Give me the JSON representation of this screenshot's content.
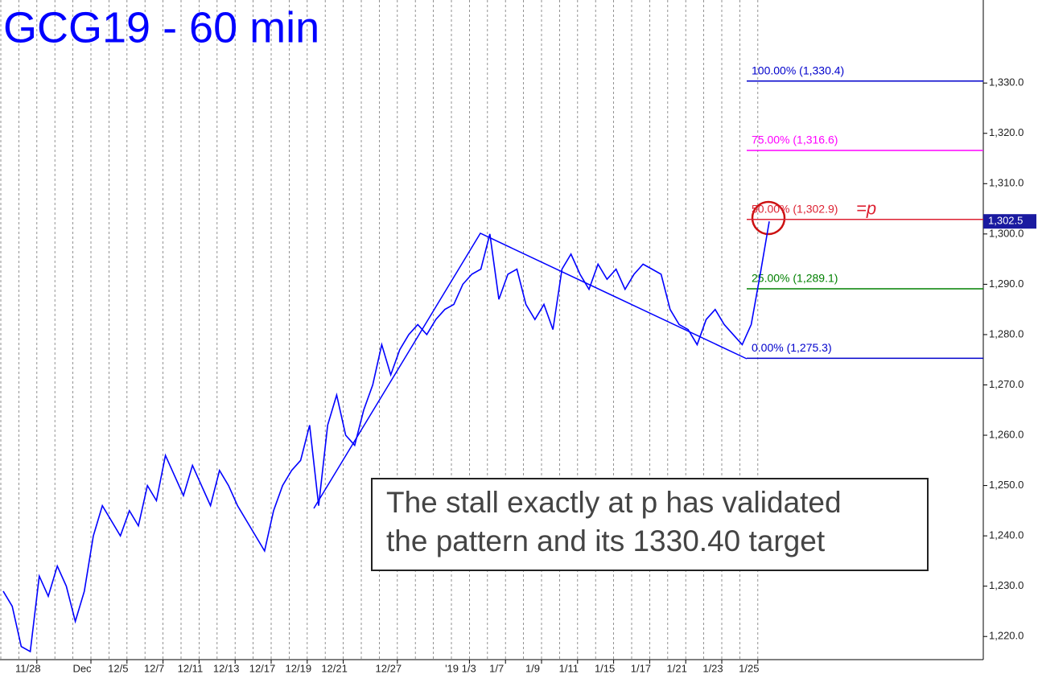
{
  "chart_data": {
    "type": "line",
    "title": "GCG19 - 60 min",
    "categories": [
      null,
      null,
      null,
      null,
      "11/28",
      null,
      null,
      null,
      null,
      null,
      "Dec",
      null,
      null,
      null,
      "12/5",
      null,
      null,
      null,
      "12/7",
      null,
      null,
      null,
      "12/11",
      null,
      null,
      null,
      "12/13",
      null,
      null,
      null,
      "12/17",
      null,
      null,
      null,
      "12/19",
      null,
      null,
      null,
      "12/21",
      null,
      null,
      null,
      null,
      null,
      "12/27",
      null,
      null,
      null,
      null,
      null,
      null,
      null,
      "'19 1/3",
      null,
      null,
      null,
      "1/7",
      null,
      null,
      null,
      "1/9",
      null,
      null,
      null,
      "1/11",
      null,
      null,
      null,
      "1/15",
      null,
      null,
      null,
      "1/17",
      null,
      null,
      null,
      "1/21",
      null,
      null,
      null,
      "1/23",
      null,
      null,
      null,
      "1/25",
      null
    ],
    "series": [
      {
        "name": "GCG19",
        "color": "#0000ff",
        "values": [
          1229,
          1226,
          1218,
          1217,
          1232,
          1228,
          1234,
          1230,
          1223,
          1229,
          1240,
          1246,
          1243,
          1240,
          1245,
          1242,
          1250,
          1247,
          1256,
          1252,
          1248,
          1254,
          1250,
          1246,
          1253,
          1250,
          1246,
          1243,
          1240,
          1237,
          1245,
          1250,
          1253,
          1255,
          1262,
          1246,
          1262,
          1268,
          1260,
          1258,
          1265,
          1270,
          1278,
          1272,
          1277,
          1280,
          1282,
          1280,
          1283,
          1285,
          1286,
          1290,
          1292,
          1293,
          1300,
          1287,
          1292,
          1293,
          1286,
          1283,
          1286,
          1281,
          1293,
          1296,
          1292,
          1289,
          1294,
          1291,
          1293,
          1289,
          1292,
          1294,
          1293,
          1292,
          1285,
          1282,
          1281,
          1278,
          1283,
          1285,
          1282,
          1280,
          1278,
          1282,
          1292,
          1302.5
        ]
      }
    ],
    "ylim": [
      1215.4,
      1346.5
    ],
    "yticks": [
      {
        "value": 1220,
        "label": "1,220.0"
      },
      {
        "value": 1230,
        "label": "1,230.0"
      },
      {
        "value": 1240,
        "label": "1,240.0"
      },
      {
        "value": 1250,
        "label": "1,250.0"
      },
      {
        "value": 1260,
        "label": "1,260.0"
      },
      {
        "value": 1270,
        "label": "1,270.0"
      },
      {
        "value": 1280,
        "label": "1,280.0"
      },
      {
        "value": 1290,
        "label": "1,290.0"
      },
      {
        "value": 1300,
        "label": "1,300.0"
      },
      {
        "value": 1310,
        "label": "1,310.0"
      },
      {
        "value": 1320,
        "label": "1,320.0"
      },
      {
        "value": 1330,
        "label": "1,330.0"
      }
    ],
    "last_price": {
      "value": 1302.5,
      "label": "1,302.5"
    },
    "levels": [
      {
        "value": 1330.4,
        "label": "100.00% (1,330.4)",
        "color": "#0000cc"
      },
      {
        "value": 1316.6,
        "label": "75.00% (1,316.6)",
        "color": "#ff00ff"
      },
      {
        "value": 1302.9,
        "label": "50.00% (1,302.9)",
        "color": "#dd2233"
      },
      {
        "value": 1289.1,
        "label": "25.00% (1,289.1)",
        "color": "#008000"
      },
      {
        "value": 1275.3,
        "label": "0.00% (1,275.3)",
        "color": "#0000cc"
      }
    ],
    "p_label": "=p",
    "annotation": [
      "The stall exactly at p has validated",
      "the pattern and its 1330.40 target"
    ]
  }
}
